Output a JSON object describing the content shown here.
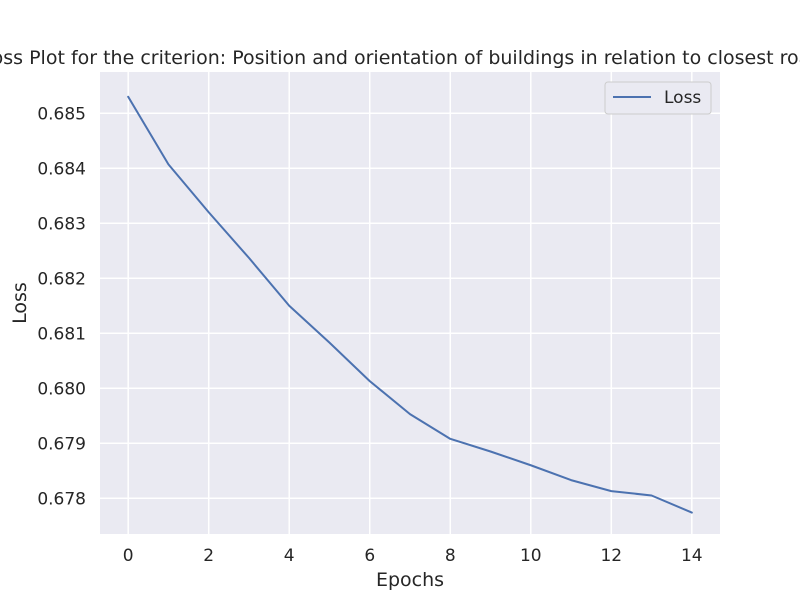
{
  "chart_data": {
    "type": "line",
    "title": "Loss Plot for the criterion: Position and orientation of buildings in relation to closest road/s",
    "xlabel": "Epochs",
    "ylabel": "Loss",
    "xlim": [
      -0.7,
      14.7
    ],
    "ylim": [
      0.67735,
      0.68575
    ],
    "x_ticks": [
      0,
      2,
      4,
      6,
      8,
      10,
      12,
      14
    ],
    "y_ticks": [
      0.678,
      0.679,
      0.68,
      0.681,
      0.682,
      0.683,
      0.684,
      0.685
    ],
    "grid": true,
    "legend_position": "upper-right",
    "series": [
      {
        "name": "Loss",
        "color": "#4c72b0",
        "x": [
          0,
          1,
          2,
          3,
          4,
          5,
          6,
          7,
          8,
          9,
          10,
          11,
          12,
          13,
          14
        ],
        "values": [
          0.6853,
          0.68407,
          0.6832,
          0.68237,
          0.6815,
          0.68083,
          0.68013,
          0.67953,
          0.67908,
          0.67885,
          0.6786,
          0.67833,
          0.67813,
          0.67805,
          0.67774
        ]
      }
    ]
  }
}
